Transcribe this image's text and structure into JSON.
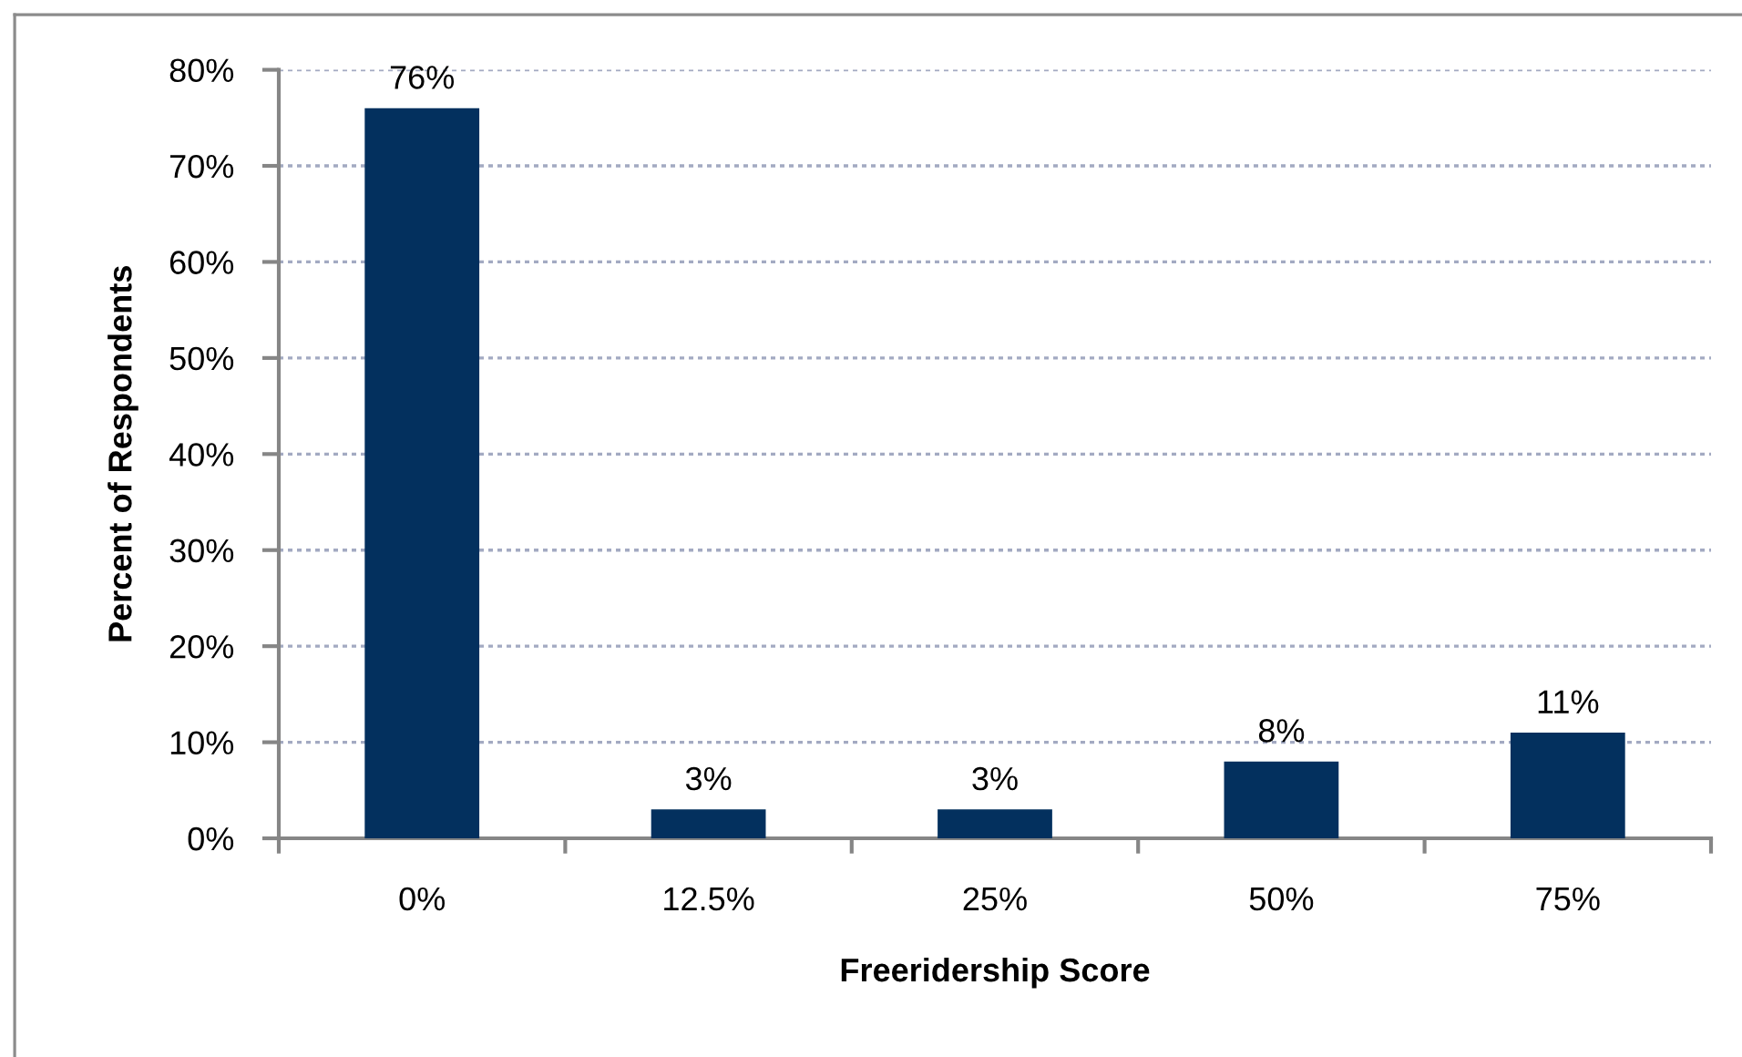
{
  "chart_data": {
    "type": "bar",
    "xlabel": "Freeridership Score",
    "ylabel": "Percent of Respondents",
    "categories": [
      "0%",
      "12.5%",
      "25%",
      "50%",
      "75%"
    ],
    "values": [
      76,
      3,
      3,
      8,
      11
    ],
    "color": "#03305e",
    "value_labels": [
      "76%",
      "3%",
      "3%",
      "8%",
      "11%"
    ],
    "ylim": [
      0,
      80
    ],
    "yticks": [
      {
        "value": 0,
        "label": "0%"
      },
      {
        "value": 10,
        "label": "10%"
      },
      {
        "value": 20,
        "label": "20%"
      },
      {
        "value": 30,
        "label": "30%"
      },
      {
        "value": 40,
        "label": "40%"
      },
      {
        "value": 50,
        "label": "50%"
      },
      {
        "value": 60,
        "label": "60%"
      },
      {
        "value": 70,
        "label": "70%"
      },
      {
        "value": 80,
        "label": "80%"
      }
    ],
    "grid": "y"
  }
}
